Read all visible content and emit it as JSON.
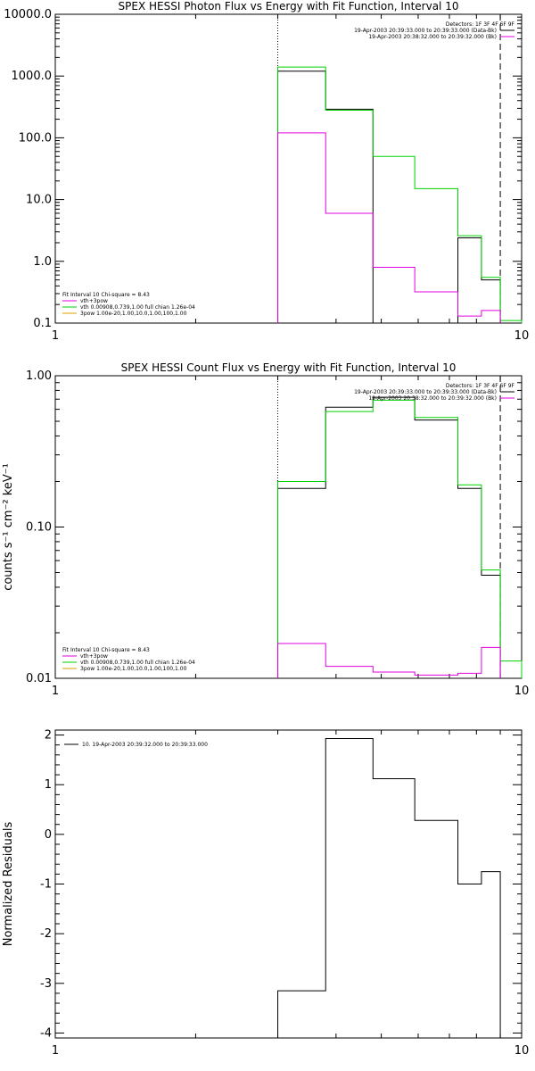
{
  "colors": {
    "black": "#000000",
    "magenta": "#e000e0",
    "green": "#00d000",
    "orange": "#d8a000",
    "background": "#ffffff"
  },
  "chart_data": [
    {
      "type": "line",
      "title": "SPEX HESSI Photon Flux vs Energy with Fit Function, Interval 10",
      "xlabel": "",
      "ylabel": "",
      "xscale": "log",
      "yscale": "log",
      "xlim": [
        1,
        10
      ],
      "ylim": [
        0.1,
        10000
      ],
      "xticks": [
        "1",
        "10"
      ],
      "yticks": [
        "0.1",
        "1.0",
        "10.0",
        "100.0",
        "1000.0",
        "10000.0"
      ],
      "vlines": [
        {
          "x": 3.0,
          "style": "dotted"
        },
        {
          "x": 9.0,
          "style": "dashed"
        }
      ],
      "legend_top_right": [
        {
          "text": "Detectors: 1F 3F 4F 6F 9F",
          "color": ""
        },
        {
          "text": "19-Apr-2003 20:39:33.000 to 20:39:33.000 (Data-Bk)",
          "color": "black"
        },
        {
          "text": "19-Apr-2003 20:38:32.000 to 20:39:32.000 (Bk)",
          "color": "magenta"
        }
      ],
      "legend_bottom_left": [
        {
          "text": "Fit Interval 10   Chi-square = 8.43",
          "color": ""
        },
        {
          "text": "vth+3pow",
          "color": "magenta"
        },
        {
          "text": "vth 0.00908,0.739,1.00  full chian 1.26e-04",
          "color": "green"
        },
        {
          "text": "3pow 1.00e-20,1.00,10.0,1.00,100,1.00",
          "color": "orange"
        }
      ],
      "edges": [
        3,
        3.8,
        4.8,
        5.9,
        7.3,
        8.2,
        9.0,
        10.0
      ],
      "series": [
        {
          "color": "black",
          "values": [
            1200,
            290,
            null,
            null,
            2.4,
            0.5,
            null
          ]
        },
        {
          "color": "green",
          "values": [
            1400,
            280,
            50,
            15,
            2.6,
            0.55,
            0.11
          ]
        },
        {
          "color": "magenta",
          "values": [
            120,
            6,
            0.8,
            0.32,
            0.13,
            0.16,
            null
          ]
        }
      ]
    },
    {
      "type": "line",
      "title": "SPEX HESSI Count Flux vs Energy with Fit Function, Interval 10",
      "xlabel": "",
      "ylabel": "counts s⁻¹ cm⁻² keV⁻¹",
      "xscale": "log",
      "yscale": "log",
      "xlim": [
        1,
        10
      ],
      "ylim": [
        0.01,
        1.0
      ],
      "xticks": [
        "1",
        "10"
      ],
      "yticks": [
        "0.01",
        "0.10",
        "1.00"
      ],
      "vlines": [
        {
          "x": 3.0,
          "style": "dotted"
        },
        {
          "x": 9.0,
          "style": "dashed"
        }
      ],
      "legend_top_right": [
        {
          "text": "Detectors: 1F 3F 4F 6F 9F",
          "color": ""
        },
        {
          "text": "19-Apr-2003 20:39:33.000 to 20:39:33.000 (Data-Bk)",
          "color": "black"
        },
        {
          "text": "19-Apr-2003 20:38:32.000 to 20:39:32.000 (Bk)",
          "color": "magenta"
        }
      ],
      "legend_bottom_left": [
        {
          "text": "Fit Interval 10   Chi-square = 8.43",
          "color": ""
        },
        {
          "text": "vth+3pow",
          "color": "magenta"
        },
        {
          "text": "vth 0.00908,0.739,1.00  full chian 1.26e-04",
          "color": "green"
        },
        {
          "text": "3pow 1.00e-20,1.00,10.0,1.00,100,1.00",
          "color": "orange"
        }
      ],
      "edges": [
        3,
        3.8,
        4.8,
        5.9,
        7.3,
        8.2,
        9.0,
        10.0
      ],
      "series": [
        {
          "color": "black",
          "values": [
            0.18,
            0.62,
            0.72,
            0.51,
            0.18,
            0.048,
            null
          ]
        },
        {
          "color": "green",
          "values": [
            0.2,
            0.58,
            0.69,
            0.53,
            0.19,
            0.052,
            0.013
          ]
        },
        {
          "color": "magenta",
          "values": [
            0.017,
            0.012,
            0.011,
            0.0105,
            0.0108,
            0.016,
            null
          ]
        }
      ]
    },
    {
      "type": "line",
      "title": "",
      "xlabel": "",
      "ylabel": "Normalized Residuals",
      "xscale": "log",
      "yscale": "linear",
      "xlim": [
        1,
        10
      ],
      "ylim": [
        -4.1,
        2.1
      ],
      "xticks": [
        "1",
        "10"
      ],
      "yticks": [
        "-4",
        "-3",
        "-2",
        "-1",
        "0",
        "1",
        "2"
      ],
      "vlines": [],
      "legend_top_left": [
        {
          "text": "10. 19-Apr-2003 20:39:32.000 to 20:39:33.000",
          "color": "black"
        }
      ],
      "edges": [
        3,
        3.8,
        4.8,
        5.9,
        7.3,
        8.2,
        9.0
      ],
      "series": [
        {
          "color": "black",
          "values": [
            -3.15,
            1.93,
            1.12,
            0.28,
            -1.0,
            -0.75
          ]
        }
      ]
    }
  ]
}
